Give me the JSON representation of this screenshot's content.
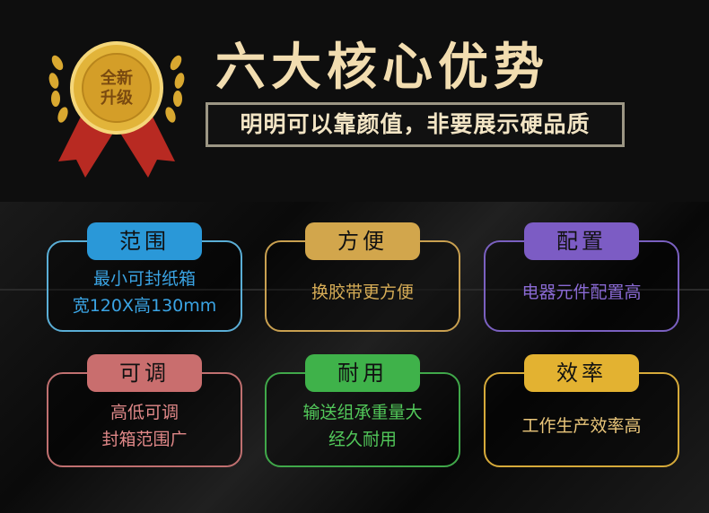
{
  "header": {
    "title": "六大核心优势",
    "subtitle": "明明可以靠颜值，非要展示硬品质",
    "badge_text": [
      "全新",
      "升级"
    ]
  },
  "cards": [
    {
      "label": "范围",
      "lines": [
        "最小可封纸箱",
        "宽120X高130mm"
      ],
      "tab_color": "#2a98d8",
      "border_color": "#5aaed6",
      "text_color": "#3aa4e4"
    },
    {
      "label": "方便",
      "lines": [
        "换胶带更方便"
      ],
      "tab_color": "#d2a64c",
      "border_color": "#c9a050",
      "text_color": "#d6ac56"
    },
    {
      "label": "配置",
      "lines": [
        "电器元件配置高"
      ],
      "tab_color": "#7c5cc4",
      "border_color": "#7a60c0",
      "text_color": "#8a6ad4"
    },
    {
      "label": "可调",
      "lines": [
        "高低可调",
        "封箱范围广"
      ],
      "tab_color": "#c96e6e",
      "border_color": "#c07070",
      "text_color": "#e08888"
    },
    {
      "label": "耐用",
      "lines": [
        "输送组承重量大",
        "经久耐用"
      ],
      "tab_color": "#3fb24a",
      "border_color": "#40a84a",
      "text_color": "#52c85a"
    },
    {
      "label": "效率",
      "lines": [
        "工作生产效率高"
      ],
      "tab_color": "#e3b231",
      "border_color": "#d6aa3a",
      "text_color": "#eac67a"
    }
  ]
}
